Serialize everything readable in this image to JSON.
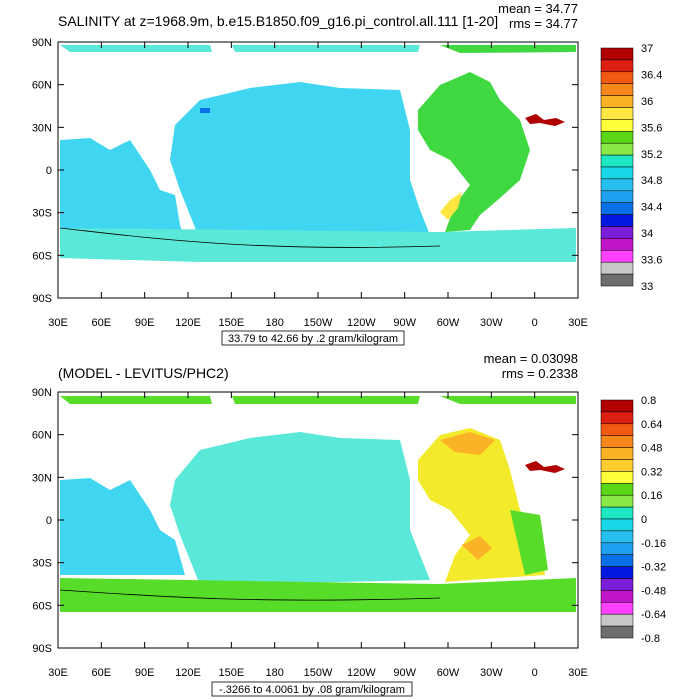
{
  "panels": [
    {
      "title": "SALINITY at z=1968.9m, b.e15.B1850.f09_g16.pi_control.all.111 [1-20]",
      "mean_label": "mean = 34.77",
      "rms_label": "rms = 34.77",
      "range_note": "33.79 to 42.66 by .2 gram/kilogram",
      "lat_ticks": [
        "90N",
        "60N",
        "30N",
        "0",
        "30S",
        "60S",
        "90S"
      ],
      "lon_ticks": [
        "30E",
        "60E",
        "90E",
        "120E",
        "150E",
        "180",
        "150W",
        "120W",
        "90W",
        "60W",
        "30W",
        "0",
        "30E"
      ],
      "colorbar_labels": [
        "37",
        "36.4",
        "36",
        "35.6",
        "35.2",
        "34.8",
        "34.4",
        "34",
        "33.6",
        "33"
      ],
      "colorbar_colors": [
        "#b00000",
        "#dc1f10",
        "#f25a14",
        "#f8871c",
        "#fbb227",
        "#ffe640",
        "#ffff3c",
        "#5ad616",
        "#8ae848",
        "#1ee8c4",
        "#18d8e8",
        "#28c0f0",
        "#1ea0f0",
        "#0a70e8",
        "#0018e0",
        "#7a1ed8",
        "#c014c8",
        "#ff40ff",
        "#c8c8c8",
        "#6e6e6e"
      ],
      "colors": {
        "ocean_main": "#40d6f2",
        "ocean_deep": "#60e8e0",
        "atlantic": "#40d840",
        "med": "#b00000"
      }
    },
    {
      "title": "(MODEL - LEVITUS/PHC2)",
      "mean_label": "mean = 0.03098",
      "rms_label": "rms = 0.2338",
      "range_note": "-.3266 to 4.0061 by .08 gram/kilogram",
      "lat_ticks": [
        "90N",
        "60N",
        "30N",
        "0",
        "30S",
        "60S",
        "90S"
      ],
      "lon_ticks": [
        "30E",
        "60E",
        "90E",
        "120E",
        "150E",
        "180",
        "150W",
        "120W",
        "90W",
        "60W",
        "30W",
        "0",
        "30E"
      ],
      "colorbar_labels": [
        "0.8",
        "0.64",
        "0.48",
        "0.32",
        "0.16",
        "0",
        "-0.16",
        "-0.32",
        "-0.48",
        "-0.64",
        "-0.8"
      ],
      "colorbar_colors": [
        "#b00000",
        "#dc1f10",
        "#f25a14",
        "#f8871c",
        "#fbb227",
        "#ffcc30",
        "#ffff3c",
        "#5ad616",
        "#8ae848",
        "#1ee8c4",
        "#18d8e8",
        "#28c0f0",
        "#1ea0f0",
        "#0a70e8",
        "#0018e0",
        "#7a1ed8",
        "#c014c8",
        "#ff40ff",
        "#c8c8c8",
        "#6e6e6e"
      ],
      "colors": {
        "ocean_main": "#5ae8d8",
        "ocean_south": "#58dc2a",
        "atlantic": "#f2ea2a",
        "pacific_west": "#40d6f2"
      }
    }
  ]
}
